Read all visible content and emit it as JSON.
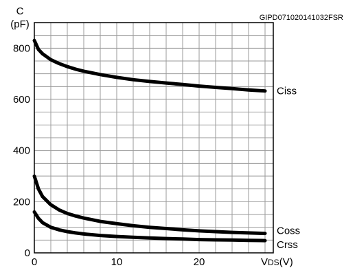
{
  "chart_data": {
    "type": "line",
    "figure_code": "GIPD071020141032FSR",
    "ylabel_line1": "C",
    "ylabel_line2": "(pF)",
    "xlabel_main": "V",
    "xlabel_sub": "DS",
    "xlabel_unit": "(V)",
    "xlim": [
      0,
      29
    ],
    "ylim": [
      0,
      900
    ],
    "x_ticks": [
      0,
      10,
      20
    ],
    "y_ticks": [
      0,
      200,
      400,
      600,
      800
    ],
    "grid": true,
    "series": [
      {
        "name": "Ciss",
        "x": [
          0,
          0.5,
          1,
          2,
          3,
          4,
          5,
          6,
          8,
          10,
          12,
          14,
          16,
          18,
          20,
          22,
          24,
          26,
          28
        ],
        "values": [
          830,
          795,
          778,
          755,
          740,
          728,
          718,
          710,
          697,
          686,
          677,
          670,
          664,
          658,
          652,
          647,
          642,
          637,
          633
        ]
      },
      {
        "name": "Coss",
        "x": [
          0,
          0.5,
          1,
          2,
          3,
          4,
          5,
          6,
          8,
          10,
          12,
          14,
          16,
          18,
          20,
          22,
          24,
          26,
          28
        ],
        "values": [
          300,
          250,
          220,
          188,
          168,
          154,
          144,
          136,
          123,
          114,
          106,
          100,
          95,
          90,
          86,
          83,
          80,
          78,
          76
        ]
      },
      {
        "name": "Crss",
        "x": [
          0,
          0.5,
          1,
          2,
          3,
          4,
          5,
          6,
          8,
          10,
          12,
          14,
          16,
          18,
          20,
          22,
          24,
          26,
          28
        ],
        "values": [
          160,
          135,
          118,
          100,
          90,
          83,
          78,
          74,
          68,
          64,
          61,
          58,
          56,
          54,
          52,
          51,
          50,
          49,
          48
        ]
      }
    ]
  }
}
